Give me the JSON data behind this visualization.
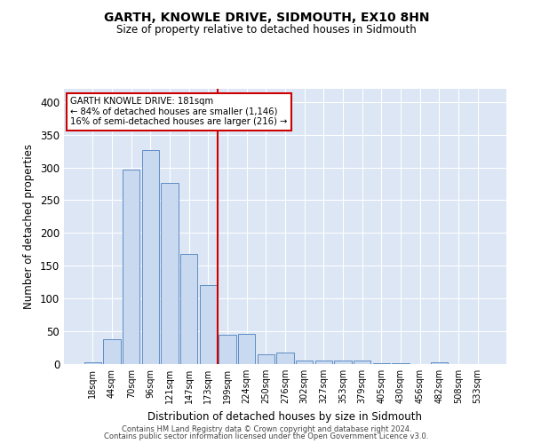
{
  "title": "GARTH, KNOWLE DRIVE, SIDMOUTH, EX10 8HN",
  "subtitle": "Size of property relative to detached houses in Sidmouth",
  "xlabel": "Distribution of detached houses by size in Sidmouth",
  "ylabel": "Number of detached properties",
  "bar_labels": [
    "18sqm",
    "44sqm",
    "70sqm",
    "96sqm",
    "121sqm",
    "147sqm",
    "173sqm",
    "199sqm",
    "224sqm",
    "250sqm",
    "276sqm",
    "302sqm",
    "327sqm",
    "353sqm",
    "379sqm",
    "405sqm",
    "430sqm",
    "456sqm",
    "482sqm",
    "508sqm",
    "533sqm"
  ],
  "bar_heights": [
    3,
    38,
    297,
    326,
    277,
    168,
    121,
    45,
    46,
    15,
    17,
    5,
    6,
    5,
    6,
    2,
    1,
    0,
    3,
    0,
    0
  ],
  "bar_color": "#c9d9f0",
  "bar_edge_color": "#5f8ec4",
  "vline_color": "#cc0000",
  "vline_index": 6,
  "annotation_line1": "GARTH KNOWLE DRIVE: 181sqm",
  "annotation_line2": "← 84% of detached houses are smaller (1,146)",
  "annotation_line3": "16% of semi-detached houses are larger (216) →",
  "annotation_box_color": "#ffffff",
  "annotation_box_edge": "#cc0000",
  "ylim": [
    0,
    420
  ],
  "yticks": [
    0,
    50,
    100,
    150,
    200,
    250,
    300,
    350,
    400
  ],
  "background_color": "#dce6f5",
  "footer_line1": "Contains HM Land Registry data © Crown copyright and database right 2024.",
  "footer_line2": "Contains public sector information licensed under the Open Government Licence v3.0."
}
